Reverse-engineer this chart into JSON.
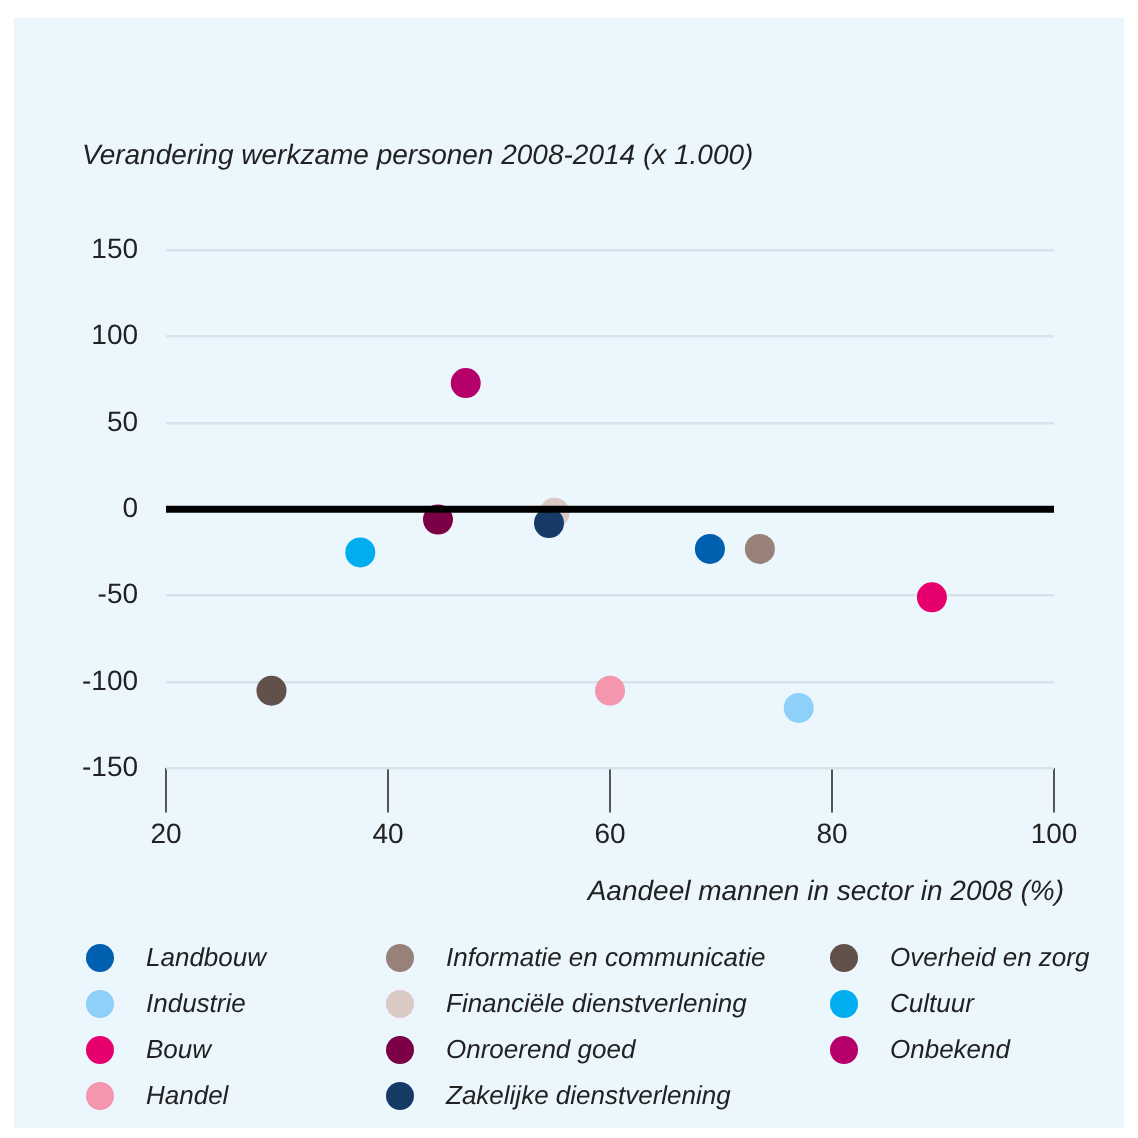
{
  "chart_data": {
    "type": "scatter",
    "ylabel": "Verandering werkzame personen 2008-2014 (x 1.000)",
    "xlabel": "Aandeel mannen in sector in 2008 (%)",
    "xlim": [
      20,
      100
    ],
    "xticks": [
      20,
      40,
      60,
      80,
      100
    ],
    "ylim": [
      -150,
      150
    ],
    "yticks": [
      -150,
      -100,
      -50,
      0,
      50,
      100,
      150
    ],
    "grid": "y",
    "legend": "bottom",
    "marker": "circle",
    "ref_lines": [
      {
        "axis": "y",
        "value": 0,
        "color": "#000000"
      }
    ],
    "series": [
      {
        "name": "Landbouw",
        "color": "#0060b0",
        "x": [
          69
        ],
        "values": [
          -23
        ]
      },
      {
        "name": "Industrie",
        "color": "#8dd1fb",
        "x": [
          77
        ],
        "values": [
          -115
        ]
      },
      {
        "name": "Bouw",
        "color": "#e5006d",
        "x": [
          89
        ],
        "values": [
          -51
        ]
      },
      {
        "name": "Handel",
        "color": "#f497ae",
        "x": [
          60
        ],
        "values": [
          -105
        ]
      },
      {
        "name": "Informatie en communicatie",
        "color": "#978178",
        "x": [
          73.5
        ],
        "values": [
          -23
        ]
      },
      {
        "name": "Financiële dienstverlening",
        "color": "#dbc9c6",
        "x": [
          55
        ],
        "values": [
          -2
        ]
      },
      {
        "name": "Onroerend goed",
        "color": "#7c0046",
        "x": [
          44.5
        ],
        "values": [
          -6
        ]
      },
      {
        "name": "Zakelijke dienstverlening",
        "color": "#163a66",
        "x": [
          54.5
        ],
        "values": [
          -8
        ]
      },
      {
        "name": "Overheid en zorg",
        "color": "#62504a",
        "x": [
          29.5
        ],
        "values": [
          -105
        ]
      },
      {
        "name": "Cultuur",
        "color": "#00adef",
        "x": [
          37.5
        ],
        "values": [
          -25
        ]
      },
      {
        "name": "Onbekend",
        "color": "#b5006b",
        "x": [
          47
        ],
        "values": [
          73
        ]
      }
    ]
  }
}
